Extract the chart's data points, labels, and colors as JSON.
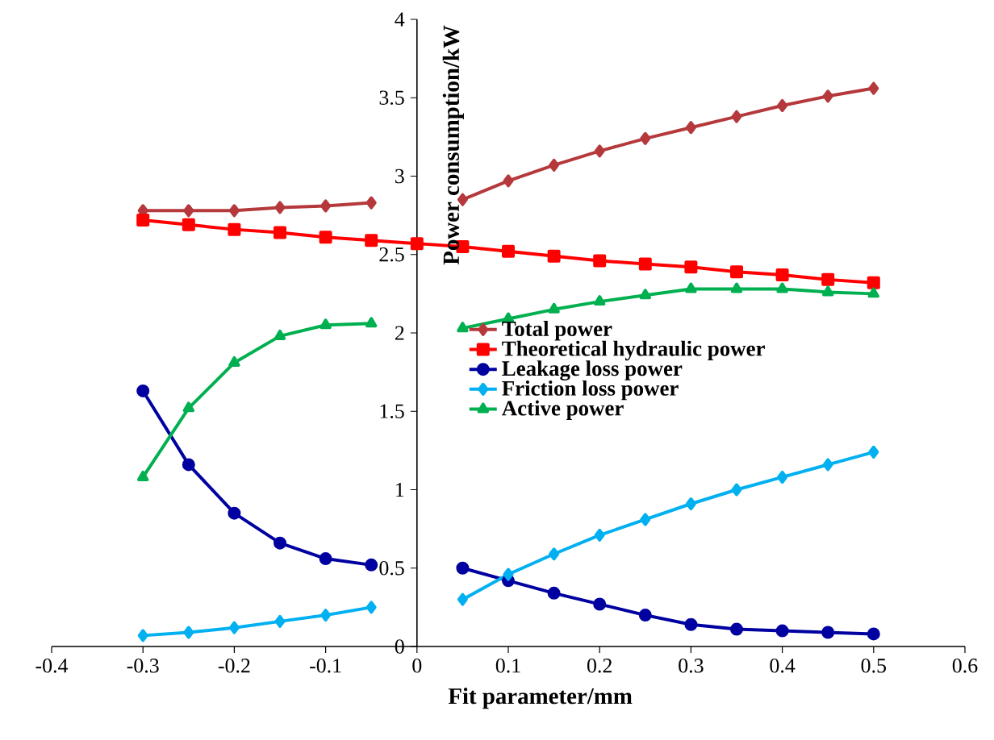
{
  "chart_data": {
    "type": "line",
    "xlabel": "Fit parameter/mm",
    "ylabel": "Power consumption/kW",
    "x": [
      -0.3,
      -0.25,
      -0.2,
      -0.15,
      -0.1,
      -0.05,
      0,
      0.05,
      0.1,
      0.15,
      0.2,
      0.25,
      0.3,
      0.35,
      0.4,
      0.45,
      0.5
    ],
    "series": [
      {
        "name": "Total power",
        "color": "#b5393c",
        "marker": "diamond",
        "values": [
          2.78,
          2.78,
          2.78,
          2.8,
          2.81,
          2.83,
          null,
          2.85,
          2.97,
          3.07,
          3.16,
          3.24,
          3.31,
          3.38,
          3.45,
          3.51,
          3.56
        ]
      },
      {
        "name": "Theoretical hydraulic power",
        "color": "#ff0000",
        "marker": "square",
        "values": [
          2.72,
          2.69,
          2.66,
          2.64,
          2.61,
          2.59,
          2.57,
          2.55,
          2.52,
          2.49,
          2.46,
          2.44,
          2.42,
          2.39,
          2.37,
          2.34,
          2.32
        ]
      },
      {
        "name": "Leakage loss power",
        "color": "#0000a0",
        "marker": "circle",
        "values": [
          1.63,
          1.16,
          0.85,
          0.66,
          0.56,
          0.52,
          null,
          0.5,
          0.42,
          0.34,
          0.27,
          0.2,
          0.14,
          0.11,
          0.1,
          0.09,
          0.08
        ]
      },
      {
        "name": "Friction loss power",
        "color": "#00b0f0",
        "marker": "diamond",
        "values": [
          0.07,
          0.09,
          0.12,
          0.16,
          0.2,
          0.25,
          null,
          0.3,
          0.46,
          0.59,
          0.71,
          0.81,
          0.91,
          1.0,
          1.08,
          1.16,
          1.24
        ]
      },
      {
        "name": "Active power",
        "color": "#00b050",
        "marker": "triangle",
        "values": [
          1.08,
          1.52,
          1.81,
          1.98,
          2.05,
          2.06,
          null,
          2.03,
          2.09,
          2.15,
          2.2,
          2.24,
          2.28,
          2.28,
          2.28,
          2.26,
          2.25
        ]
      }
    ],
    "xlim": [
      -0.4,
      0.6
    ],
    "xticks": [
      -0.4,
      -0.3,
      -0.2,
      -0.1,
      0,
      0.1,
      0.2,
      0.3,
      0.4,
      0.5,
      0.6
    ],
    "ylim": [
      0,
      4
    ],
    "yticks": [
      0,
      0.5,
      1,
      1.5,
      2,
      2.5,
      3,
      3.5,
      4
    ],
    "legend": "center right",
    "line_style": "solid"
  }
}
